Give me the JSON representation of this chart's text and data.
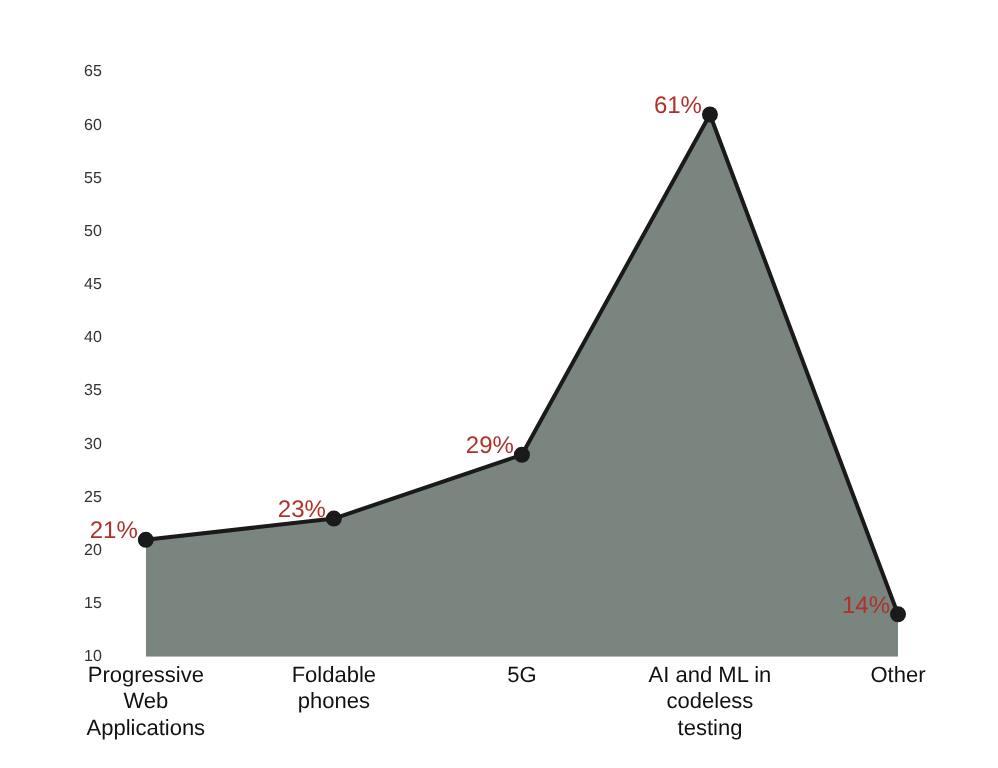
{
  "chart_data": {
    "type": "area",
    "categories": [
      "Progressive Web Applications",
      "Foldable phones",
      "5G",
      "AI and ML in codeless testing",
      "Other"
    ],
    "series": [
      {
        "color": "#7a8580",
        "values": [
          21,
          23,
          29,
          61,
          14
        ],
        "value_labels": [
          "21%",
          "23%",
          "29%",
          "61%",
          "14%"
        ]
      }
    ],
    "ylim": [
      10,
      65
    ],
    "yticks": [
      10,
      15,
      20,
      25,
      30,
      35,
      40,
      45,
      50,
      55,
      60,
      65
    ],
    "grid": false,
    "legend": false,
    "marker": "circle",
    "line_style": "solid"
  }
}
